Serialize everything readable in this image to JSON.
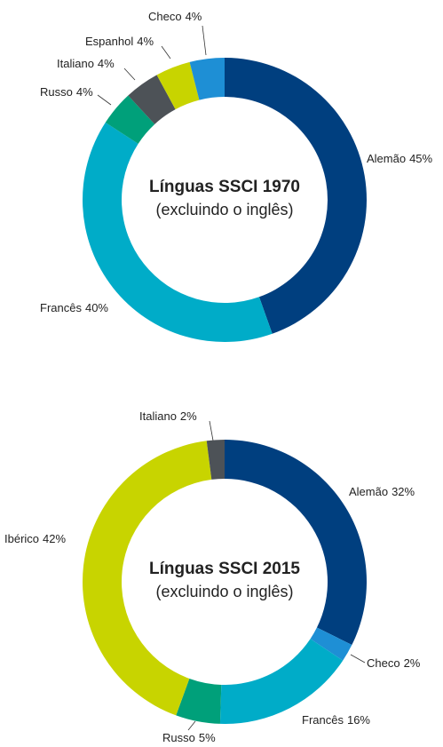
{
  "chart_data": [
    {
      "type": "pie",
      "title": "Línguas SSCI 1970",
      "subtitle": "(excluindo o inglês)",
      "categories": [
        "Alemão",
        "Francês",
        "Russo",
        "Italiano",
        "Espanhol",
        "Checo"
      ],
      "values": [
        45,
        40,
        4,
        4,
        4,
        4
      ],
      "value_labels": [
        "45%",
        "40%",
        "4%",
        "4%",
        "4%",
        "4%"
      ],
      "colors": [
        "#003f7f",
        "#00acc8",
        "#00a07a",
        "#4d5257",
        "#c8d400",
        "#1e8fd5"
      ]
    },
    {
      "type": "pie",
      "title": "Línguas SSCI 2015",
      "subtitle": "(excluindo o inglês)",
      "categories": [
        "Alemão",
        "Checo",
        "Francês",
        "Russo",
        "Ibérico",
        "Italiano"
      ],
      "values": [
        32,
        2,
        16,
        5,
        42,
        2
      ],
      "value_labels": [
        "32%",
        "2%",
        "16%",
        "5%",
        "42%",
        "2%"
      ],
      "colors": [
        "#003f7f",
        "#1e8fd5",
        "#00acc8",
        "#00a07a",
        "#c8d400",
        "#4d5257"
      ]
    }
  ]
}
